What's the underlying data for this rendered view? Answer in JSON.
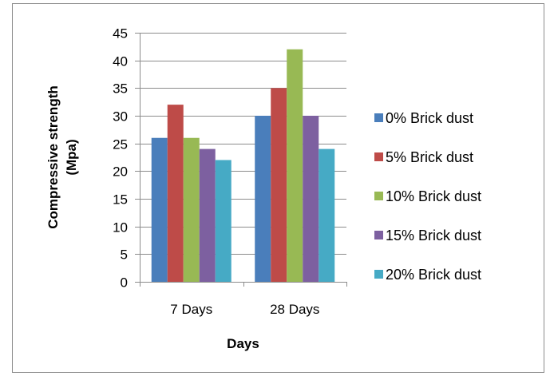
{
  "chart_data": {
    "type": "bar",
    "title": "",
    "xlabel": "Days",
    "ylabel_lines": [
      "Compressive strength",
      "(Mpa)"
    ],
    "categories": [
      "7 Days",
      "28 Days"
    ],
    "series": [
      {
        "name": "0% Brick dust",
        "values": [
          26,
          30
        ],
        "color": "#4a7ebb"
      },
      {
        "name": "5% Brick dust",
        "values": [
          32,
          35
        ],
        "color": "#be4b48"
      },
      {
        "name": "10% Brick dust",
        "values": [
          26,
          42
        ],
        "color": "#98b954"
      },
      {
        "name": "15% Brick dust",
        "values": [
          24,
          30
        ],
        "color": "#7d60a0"
      },
      {
        "name": "20% Brick dust",
        "values": [
          22,
          24
        ],
        "color": "#46aac5"
      }
    ],
    "ylim": [
      0,
      45
    ],
    "yticks": [
      0,
      5,
      10,
      15,
      20,
      25,
      30,
      35,
      40,
      45
    ],
    "grid": true,
    "legend_position": "right"
  }
}
